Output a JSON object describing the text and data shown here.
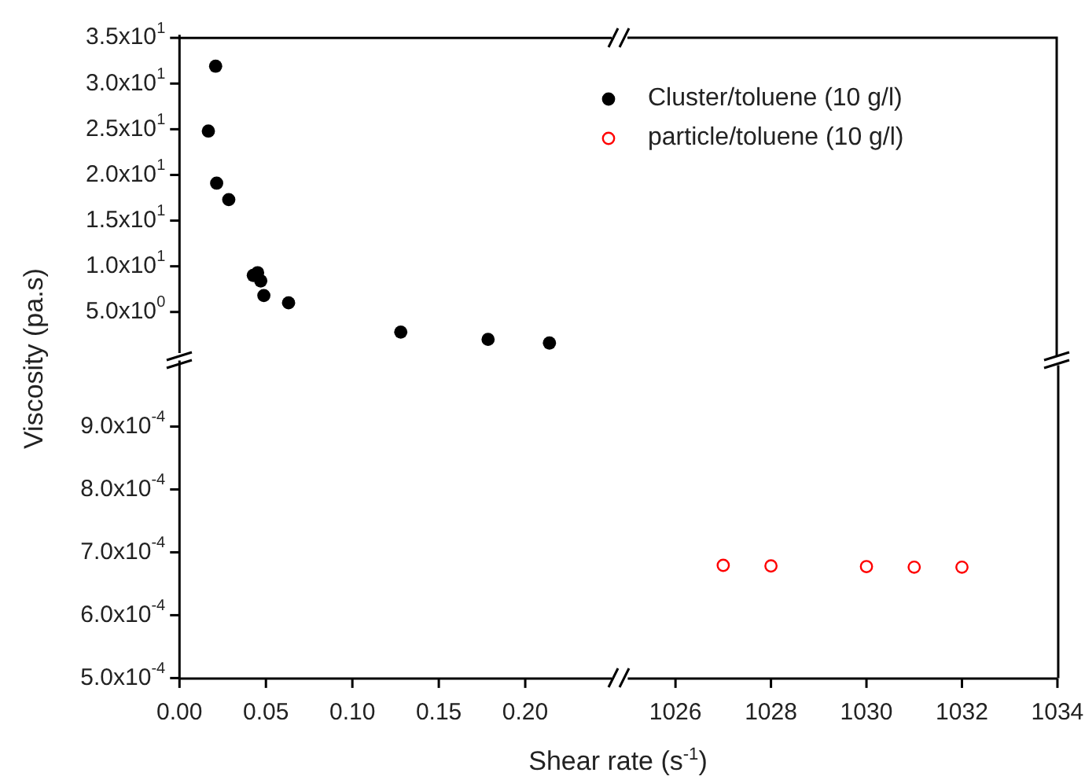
{
  "chart_data": [
    {
      "type": "scatter",
      "x": [
        0.0209,
        0.0167,
        0.0215,
        0.0285,
        0.0427,
        0.0452,
        0.047,
        0.0488,
        0.0631,
        0.128,
        0.1785,
        0.214
      ],
      "series": [
        {
          "name": "Cluster/toluene (10 g/l)",
          "color": "#000000",
          "values": [
            31.9,
            24.8,
            19.1,
            17.3,
            9.0,
            9.3,
            8.4,
            6.8,
            6.0,
            2.8,
            2.0,
            1.6
          ]
        }
      ],
      "xlim": [
        0,
        0.25
      ],
      "ylim": [
        0.5,
        35
      ],
      "yticks": [
        {
          "value": 5,
          "label": "5.0x10$^{0}$"
        },
        {
          "value": 10,
          "label": "1.0x10$^{1}$"
        },
        {
          "value": 15,
          "label": "1.5x10$^{1}$"
        },
        {
          "value": 20,
          "label": "2.0x10$^{1}$"
        },
        {
          "value": 25,
          "label": "2.5x10$^{1}$"
        },
        {
          "value": 30,
          "label": "3.0x10$^{1}$"
        },
        {
          "value": 35,
          "label": "3.5x10$^{1}$"
        }
      ],
      "tick_labels": "y",
      "marker": "circle",
      "legend": "top right",
      "grid": false
    },
    {
      "type": "scatter",
      "xlabel": "Shear rate (s$^{-1}$)",
      "ylabel": "Viscosity (pa.s)",
      "xlim": [
        0,
        0.25
      ],
      "xticks": [
        {
          "value": 0,
          "label": "0.00"
        },
        {
          "value": 0.05,
          "label": "0.05"
        },
        {
          "value": 0.1,
          "label": "0.10"
        },
        {
          "value": 0.15,
          "label": "0.15"
        },
        {
          "value": 0.2,
          "label": "0.20"
        }
      ],
      "ylim": [
        0.0005,
        0.001
      ],
      "yticks": [
        {
          "value": 0.0005,
          "label": "5.0x10$^{-4}$"
        },
        {
          "value": 0.0006,
          "label": "6.0x10$^{-4}$"
        },
        {
          "value": 0.0007,
          "label": "7.0x10$^{-4}$"
        },
        {
          "value": 0.0008,
          "label": "8.0x10$^{-4}$"
        },
        {
          "value": 0.0009,
          "label": "9.0x10$^{-4}$"
        }
      ],
      "grid": false
    },
    {
      "type": "scatter",
      "x": [
        1027,
        1028,
        1030,
        1031,
        1032
      ],
      "series": [
        {
          "name": "particle/toluene (10 g/l)",
          "color": "#ff0000",
          "values": [
            0.000682,
            0.000681,
            0.00068,
            0.000679,
            0.000679
          ]
        }
      ],
      "xlim": [
        1025,
        1034
      ],
      "xticks": [
        1026,
        1028,
        1030,
        1032,
        1034
      ],
      "ylim": [
        0.0005,
        0.001
      ],
      "tick_labels": "x",
      "marker": "circle",
      "legend": "top",
      "grid": false
    }
  ]
}
